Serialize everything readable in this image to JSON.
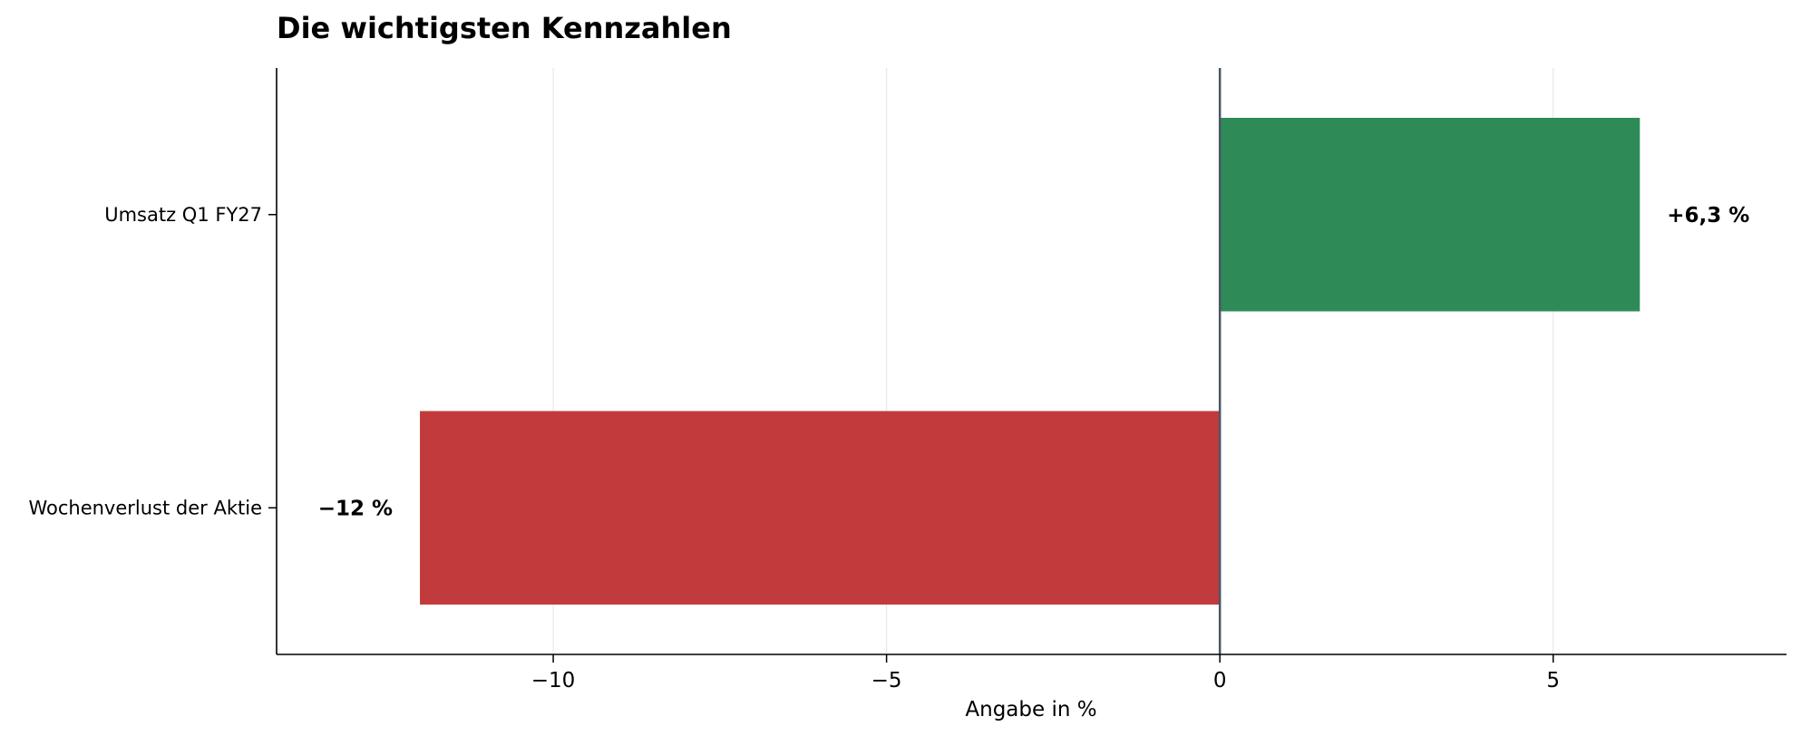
{
  "chart_data": {
    "type": "bar",
    "orientation": "horizontal",
    "title": "Die wichtigsten Kennzahlen",
    "xlabel": "Angabe in %",
    "ylabel": "",
    "xlim": [
      -14.15,
      8.5
    ],
    "xticks": [
      -10,
      -5,
      0,
      5
    ],
    "xtick_labels": [
      "−10",
      "−5",
      "0",
      "5"
    ],
    "grid": "vertical",
    "zero_line": true,
    "categories": [
      "Umsatz Q1 FY27",
      "Wochenverlust der Aktie"
    ],
    "values": [
      6.3,
      -12
    ],
    "value_labels": [
      "+6,3 %",
      "−12 %"
    ],
    "colors": [
      "#2e8b57",
      "#c23b3c"
    ],
    "zero_line_color": "#4a5568",
    "grid_color": "#e8e8e8"
  }
}
